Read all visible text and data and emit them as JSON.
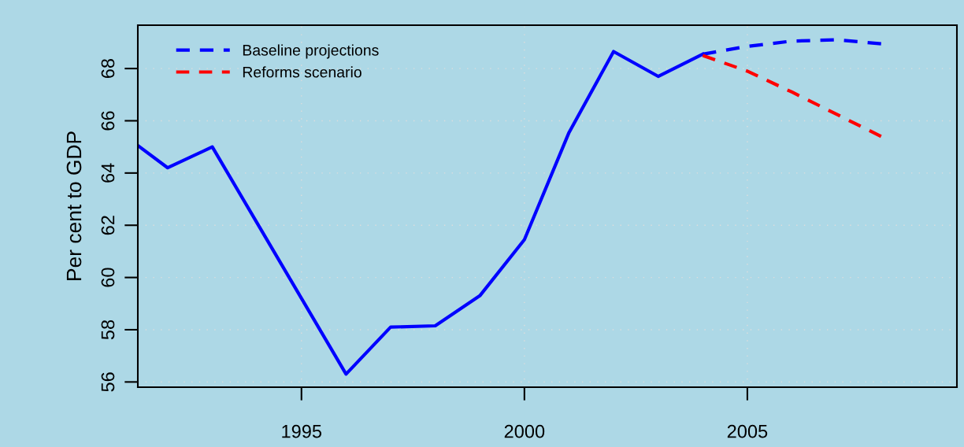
{
  "chart_data": {
    "type": "line",
    "ylabel": "Per cent to GDP",
    "xlim": [
      1991.33,
      2009.7
    ],
    "ylim": [
      55.8,
      69.66
    ],
    "xticks": [
      1995,
      2000,
      2005
    ],
    "yticks": [
      56,
      58,
      60,
      62,
      64,
      66,
      68
    ],
    "grid": true,
    "legend": "top left",
    "marker": "none",
    "series": [
      {
        "color": "#0000ff",
        "line_style": "solid",
        "x": [
          1991.33,
          1992,
          1993,
          1994,
          1995,
          1996,
          1997,
          1998,
          1999,
          2000,
          2001,
          2002,
          2003,
          2004
        ],
        "values": [
          65.05,
          64.2,
          65.0,
          62.1,
          59.2,
          56.3,
          58.1,
          58.15,
          59.3,
          61.45,
          65.55,
          68.65,
          67.7,
          68.55
        ]
      },
      {
        "name": "Baseline projections",
        "color": "#0000ff",
        "line_style": "dashed",
        "x": [
          2004,
          2005,
          2006,
          2007,
          2008
        ],
        "values": [
          68.55,
          68.85,
          69.05,
          69.1,
          68.95
        ]
      },
      {
        "name": "Reforms scenario",
        "color": "#ff0000",
        "line_style": "dashed",
        "x": [
          2004,
          2005,
          2006,
          2007,
          2008
        ],
        "values": [
          68.5,
          67.9,
          67.1,
          66.25,
          65.4
        ]
      }
    ]
  }
}
